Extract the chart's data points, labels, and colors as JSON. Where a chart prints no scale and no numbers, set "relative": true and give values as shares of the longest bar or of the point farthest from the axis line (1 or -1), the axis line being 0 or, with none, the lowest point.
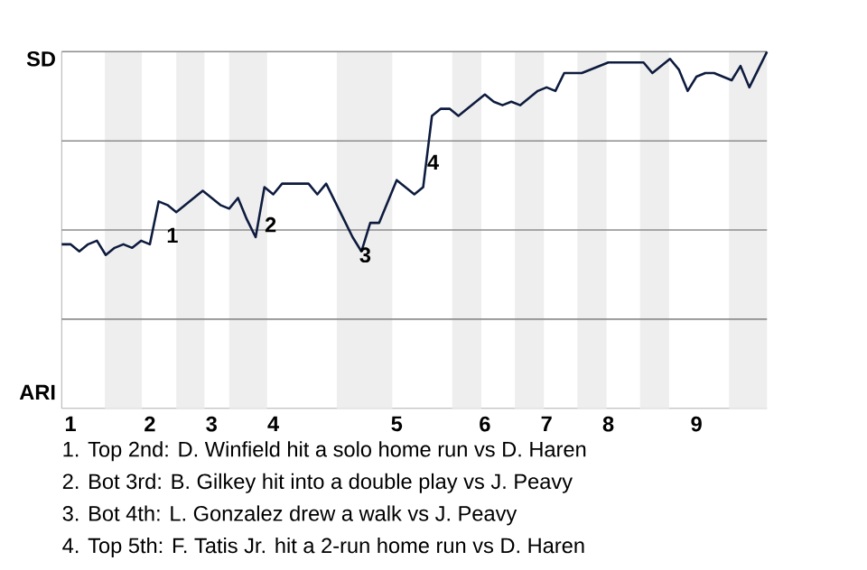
{
  "chart_data": {
    "type": "line",
    "relative": true,
    "categories": [
      null,
      "1",
      null,
      null,
      null,
      null,
      null,
      null,
      null,
      null,
      "2",
      null,
      null,
      null,
      null,
      null,
      null,
      "3",
      null,
      null,
      null,
      null,
      null,
      null,
      "4",
      null,
      null,
      null,
      null,
      null,
      null,
      null,
      null,
      null,
      null,
      null,
      null,
      null,
      "5",
      null,
      null,
      null,
      null,
      null,
      null,
      null,
      null,
      null,
      "6",
      null,
      null,
      null,
      null,
      null,
      null,
      "7",
      null,
      null,
      null,
      null,
      null,
      null,
      "8",
      null,
      null,
      null,
      null,
      null,
      null,
      null,
      null,
      null,
      "9",
      null,
      null,
      null,
      null,
      null,
      null,
      null,
      null
    ],
    "series": [
      {
        "color": "#0d1b3e",
        "values": [
          0.46,
          0.46,
          0.44,
          0.46,
          0.47,
          0.43,
          0.45,
          0.46,
          0.45,
          0.47,
          0.46,
          0.58,
          0.57,
          0.55,
          0.57,
          0.59,
          0.61,
          0.59,
          0.57,
          0.56,
          0.59,
          0.53,
          0.48,
          0.62,
          0.6,
          0.63,
          0.63,
          0.63,
          0.63,
          0.6,
          0.63,
          0.58,
          0.53,
          0.48,
          0.44,
          0.52,
          0.52,
          0.58,
          0.64,
          0.62,
          0.6,
          0.62,
          0.82,
          0.84,
          0.84,
          0.82,
          0.84,
          0.86,
          0.88,
          0.86,
          0.85,
          0.86,
          0.85,
          0.87,
          0.89,
          0.9,
          0.89,
          0.94,
          0.94,
          0.94,
          0.95,
          0.96,
          0.97,
          0.97,
          0.97,
          0.97,
          0.97,
          0.94,
          0.96,
          0.98,
          0.95,
          0.89,
          0.93,
          0.94,
          0.94,
          0.93,
          0.92,
          0.96,
          0.9,
          0.95,
          1
        ]
      }
    ],
    "grid": "y",
    "annotations": [
      "SD",
      "ARI",
      "1",
      "2",
      "3",
      "4",
      "1. Top 2nd: D. Winfield hit a solo home run vs D. Haren",
      "2. Bot 3rd: B. Gilkey hit into a double play vs J. Peavy",
      "3. Bot 4th: L. Gonzalez drew a walk vs J. Peavy",
      "4. Top 5th: F. Tatis Jr. hit a 2-run home run vs D. Haren"
    ]
  }
}
